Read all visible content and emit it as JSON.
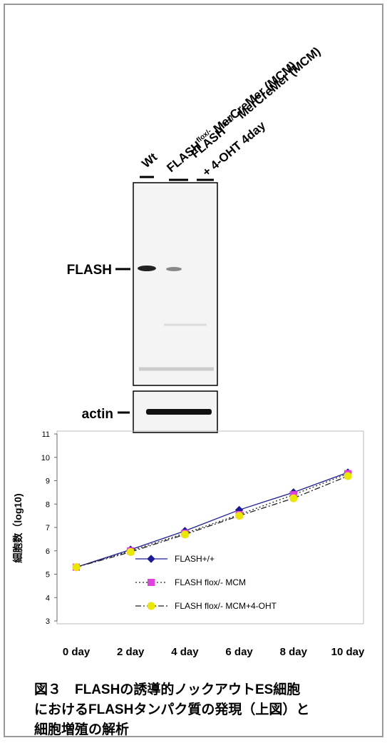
{
  "blot": {
    "lanes": [
      {
        "label": "Wt"
      },
      {
        "label": "FLASH",
        "sup": "flox/-",
        "suffix": " MerCreMer (MCM)"
      },
      {
        "label": "FLASH",
        "sup": "flox/-",
        "suffix": " MerCreMer (MCM)",
        "line2": "+ 4-OHT  4day"
      }
    ],
    "bands": [
      "FLASH",
      "actin"
    ]
  },
  "chart_data": {
    "type": "line",
    "y_label": "細胞数（log10)",
    "categories": [
      "0 day",
      "2 day",
      "4 day",
      "6 day",
      "8 day",
      "10 day"
    ],
    "ylim": [
      3,
      11
    ],
    "yticks": [
      3,
      4,
      5,
      6,
      7,
      8,
      9,
      10,
      11
    ],
    "grid": false,
    "series": [
      {
        "name": "FLASH+/+",
        "color": "#1a1a9a",
        "marker": "diamond",
        "style": "solid",
        "values": [
          5.3,
          6.05,
          6.85,
          7.75,
          8.5,
          9.35
        ]
      },
      {
        "name": "FLASH flox/- MCM",
        "color": "#e040e0",
        "marker": "square",
        "style": "dotted",
        "values": [
          5.3,
          6.0,
          6.75,
          7.55,
          8.4,
          9.3
        ]
      },
      {
        "name": "FLASH flox/- MCM+4-OHT",
        "color": "#e8e800",
        "marker": "circle",
        "style": "dashdot",
        "values": [
          5.3,
          5.95,
          6.7,
          7.5,
          8.25,
          9.2
        ]
      }
    ]
  },
  "caption": [
    "図３　FLASHの誘導的ノックアウトES細胞",
    "におけるFLASHタンパク質の発現（上図）と",
    "細胞増殖の解析"
  ]
}
